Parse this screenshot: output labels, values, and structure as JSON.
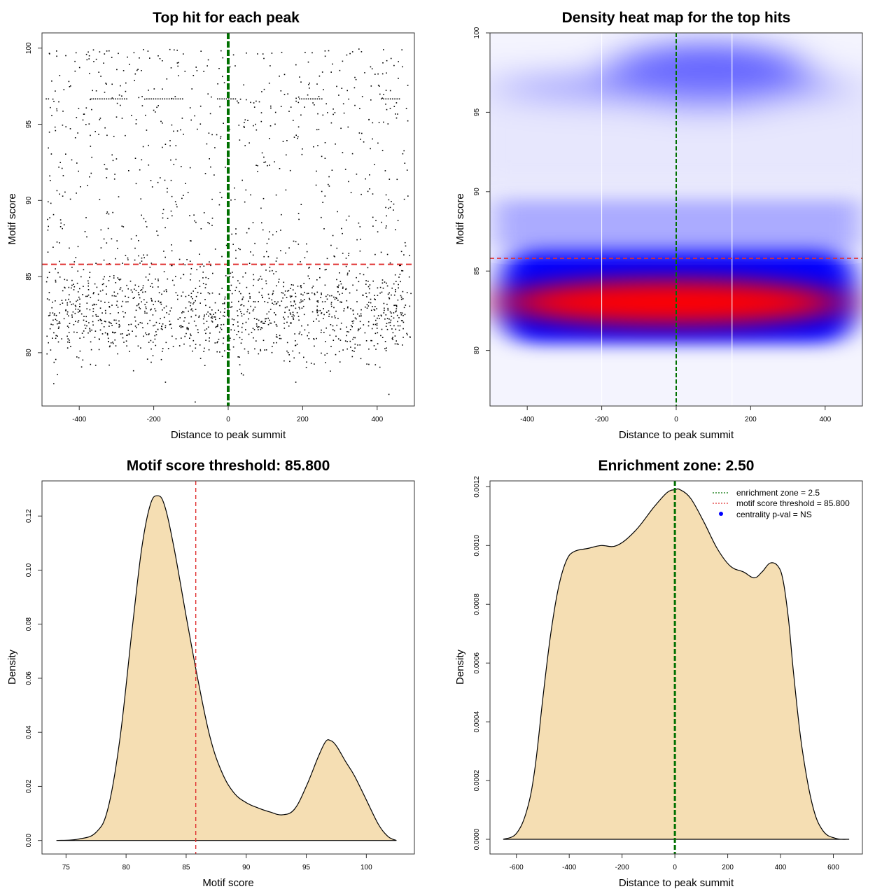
{
  "chart_data": [
    {
      "type": "scatter",
      "title": "Top hit for each peak",
      "xlabel": "Distance to peak summit",
      "ylabel": "Motif score",
      "xlim": [
        -500,
        500
      ],
      "ylim": [
        76.5,
        101
      ],
      "xticks": [
        -400,
        -200,
        0,
        200,
        400
      ],
      "yticks": [
        80,
        85,
        90,
        95,
        100
      ],
      "xtick_labels": [
        "-400",
        "-200",
        "0",
        "200",
        "400"
      ],
      "ytick_labels": [
        "80",
        "85",
        "90",
        "95",
        "100"
      ],
      "vline": {
        "x": 0,
        "color": "#007000",
        "style": "dashed"
      },
      "hline": {
        "y": 85.8,
        "color": "#e03030",
        "style": "dashed"
      },
      "point_color": "#000000",
      "point_count_approx": 1900,
      "score_bands": [
        {
          "range": [
            78,
            86
          ],
          "share": 0.66
        },
        {
          "range": [
            86,
            95
          ],
          "share": 0.19
        },
        {
          "range": [
            95,
            100
          ],
          "share": 0.15
        }
      ],
      "special_rows": [
        {
          "y": 96.7,
          "x_ranges": [
            [
              -490,
              -480
            ],
            [
              -370,
              -270
            ],
            [
              -220,
              -120
            ],
            [
              -30,
              20
            ],
            [
              190,
              250
            ],
            [
              410,
              460
            ]
          ]
        }
      ]
    },
    {
      "type": "heatmap",
      "title": "Density heat map for the top hits",
      "xlabel": "Distance to peak summit",
      "ylabel": "Motif score",
      "xlim": [
        -500,
        500
      ],
      "ylim": [
        76.5,
        100
      ],
      "xticks": [
        -400,
        -200,
        0,
        200,
        400
      ],
      "yticks": [
        80,
        85,
        90,
        95,
        100
      ],
      "xtick_labels": [
        "-400",
        "-200",
        "0",
        "200",
        "400"
      ],
      "ytick_labels": [
        "80",
        "85",
        "90",
        "95",
        "100"
      ],
      "colors": {
        "low": "#ffffff",
        "mid": "#0000ff",
        "high": "#ff0000"
      },
      "white_vlines_x": [
        -200,
        150
      ],
      "vline": {
        "x": 0,
        "color": "#007000",
        "style": "dashed"
      },
      "hline": {
        "y": 85.8,
        "color": "#e03030",
        "style": "dashed"
      },
      "density_peaks": [
        {
          "x": -100,
          "y": 82.7,
          "strength": "high"
        },
        {
          "x": 50,
          "y": 82.7,
          "strength": "high"
        },
        {
          "x": 80,
          "y": 97.8,
          "strength": "medium"
        }
      ]
    },
    {
      "type": "area",
      "title": "Motif score threshold: 85.800",
      "xlabel": "Motif score",
      "ylabel": "Density",
      "xlim": [
        73,
        104
      ],
      "ylim": [
        -0.005,
        0.133
      ],
      "xticks": [
        75,
        80,
        85,
        90,
        95,
        100
      ],
      "yticks": [
        0,
        0.02,
        0.04,
        0.06,
        0.08,
        0.1,
        0.12
      ],
      "xtick_labels": [
        "75",
        "80",
        "85",
        "90",
        "95",
        "100"
      ],
      "ytick_labels": [
        "0.00",
        "0.02",
        "0.04",
        "0.06",
        "0.08",
        "0.10",
        "0.12"
      ],
      "fill_color": "#f5deb3",
      "vline": {
        "x": 85.8,
        "color": "#e03030",
        "style": "dashed"
      },
      "x": [
        74.2,
        76,
        77.5,
        78.5,
        79.5,
        80.5,
        81.3,
        82,
        82.6,
        83.2,
        84,
        85,
        86,
        87,
        88,
        89,
        90,
        91,
        92,
        93,
        94,
        95,
        96,
        96.6,
        97,
        97.5,
        98.3,
        99,
        100,
        101,
        101.8,
        102.5
      ],
      "y": [
        0,
        0.0005,
        0.003,
        0.012,
        0.038,
        0.078,
        0.108,
        0.124,
        0.1275,
        0.124,
        0.108,
        0.083,
        0.059,
        0.038,
        0.025,
        0.0175,
        0.014,
        0.012,
        0.0105,
        0.0095,
        0.0115,
        0.02,
        0.031,
        0.0365,
        0.037,
        0.035,
        0.029,
        0.024,
        0.015,
        0.006,
        0.0015,
        0
      ]
    },
    {
      "type": "area",
      "title": "Enrichment zone: 2.50",
      "xlabel": "Distance to peak summit",
      "ylabel": "Density",
      "xlim": [
        -700,
        710
      ],
      "ylim": [
        -5e-05,
        0.00122
      ],
      "xticks": [
        -600,
        -400,
        -200,
        0,
        200,
        400,
        600
      ],
      "yticks": [
        0,
        0.0002,
        0.0004,
        0.0006,
        0.0008,
        0.001,
        0.0012
      ],
      "xtick_labels": [
        "-600",
        "-400",
        "-200",
        "0",
        "200",
        "400",
        "600"
      ],
      "ytick_labels": [
        "0.0000",
        "0.0002",
        "0.0004",
        "0.0006",
        "0.0008",
        "0.0010",
        "0.0012"
      ],
      "fill_color": "#f5deb3",
      "vline": {
        "x": 0,
        "color": "#007000",
        "style": "dashed"
      },
      "x": [
        -650,
        -600,
        -560,
        -530,
        -500,
        -470,
        -440,
        -410,
        -380,
        -330,
        -280,
        -220,
        -150,
        -80,
        -30,
        0,
        20,
        60,
        110,
        160,
        210,
        260,
        300,
        330,
        360,
        390,
        410,
        430,
        450,
        480,
        520,
        560,
        610,
        660
      ],
      "y": [
        0,
        2e-05,
        0.0001,
        0.00024,
        0.00048,
        0.0007,
        0.00086,
        0.00095,
        0.00098,
        0.00099,
        0.001,
        0.001,
        0.00105,
        0.00113,
        0.00118,
        0.00119,
        0.00119,
        0.00116,
        0.00108,
        0.00099,
        0.00093,
        0.00091,
        0.00089,
        0.00091,
        0.00094,
        0.00093,
        0.00088,
        0.00075,
        0.00056,
        0.00032,
        0.00012,
        3e-05,
        3e-06,
        0
      ],
      "legend": {
        "position": "top-right",
        "entries": [
          {
            "label": "enrichment zone = 2.5",
            "color": "#007000",
            "kind": "dotted-line"
          },
          {
            "label": "motif score threshold = 85.800",
            "color": "#e03030",
            "kind": "dotted-line"
          },
          {
            "label": "centrality p-val = NS",
            "color": "#0000ff",
            "kind": "point"
          }
        ]
      }
    }
  ]
}
